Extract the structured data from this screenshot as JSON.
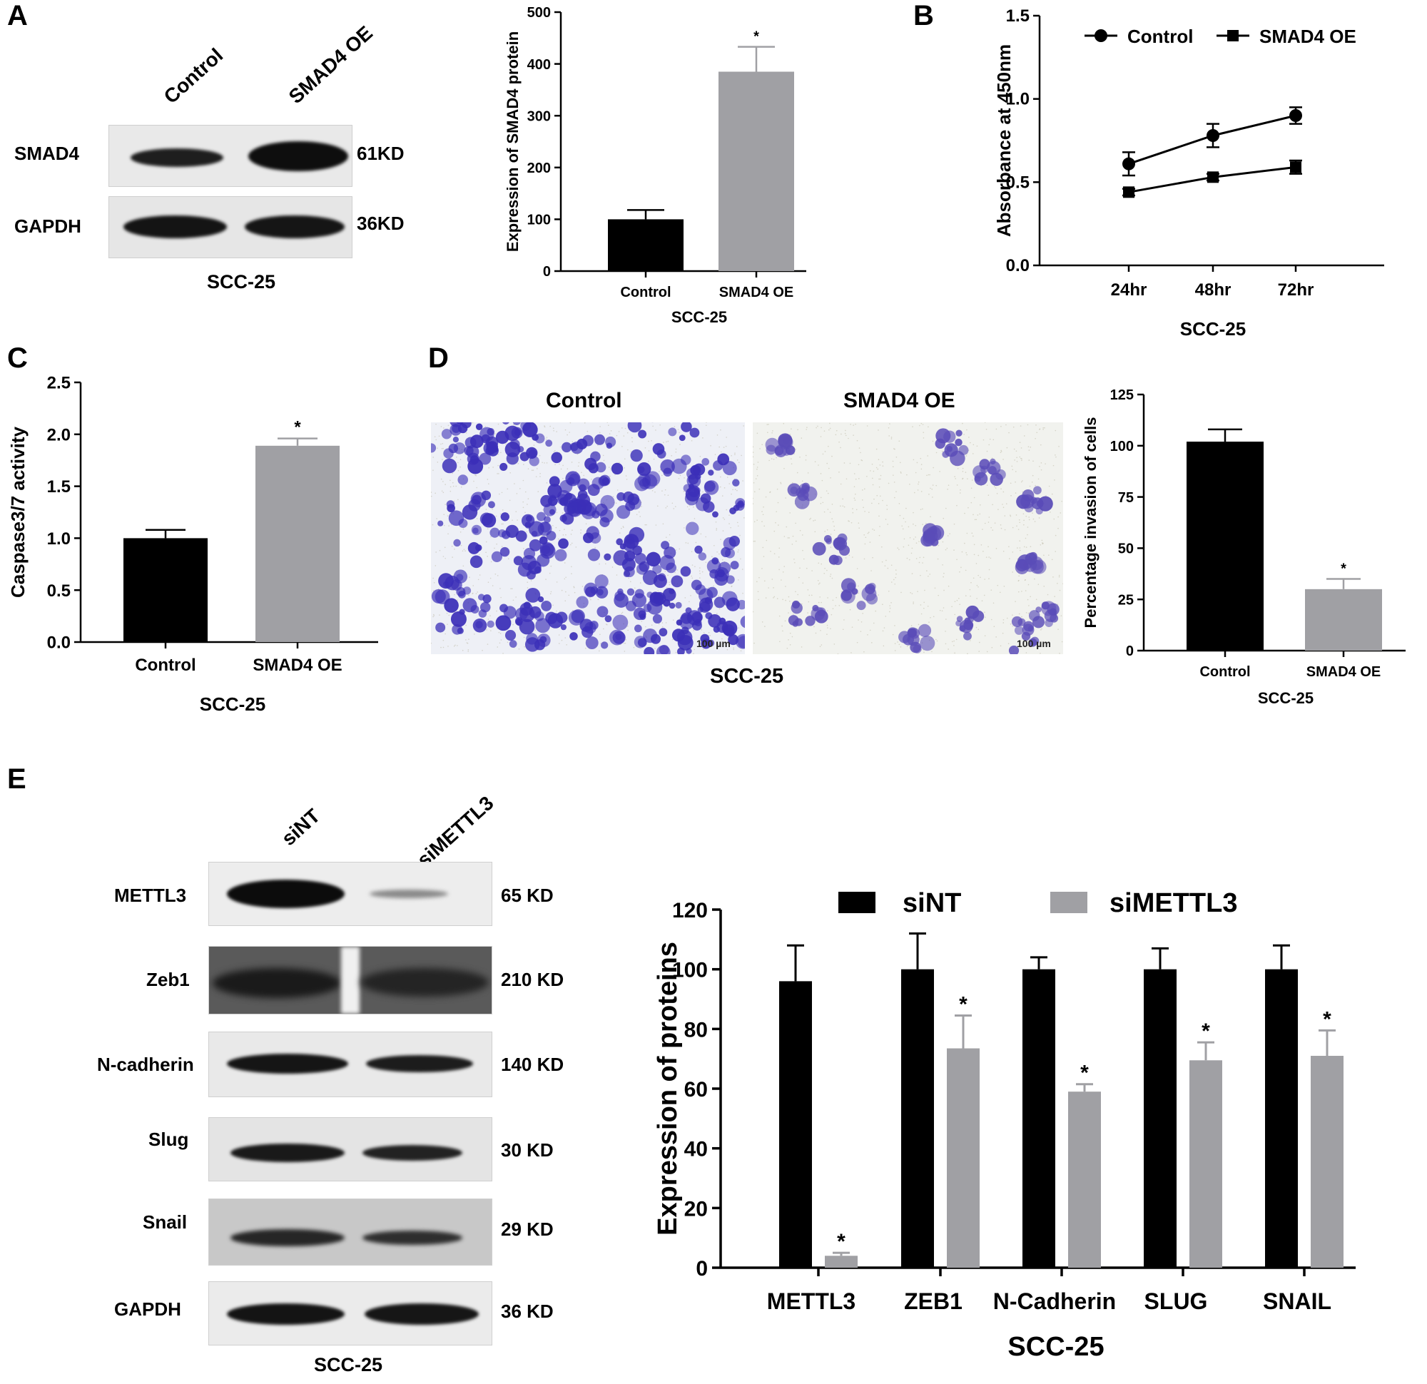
{
  "panels": {
    "A": {
      "letter": "A",
      "blot": {
        "lanes": [
          "Control",
          "SMAD4 OE"
        ],
        "rows": [
          {
            "protein": "SMAD4",
            "size": "61KD"
          },
          {
            "protein": "GAPDH",
            "size": "36KD"
          }
        ],
        "caption": "SCC-25"
      }
    },
    "B": {
      "letter": "B"
    },
    "C": {
      "letter": "C"
    },
    "D": {
      "letter": "D",
      "micrographs": [
        {
          "title": "Control",
          "scale": "100 µm"
        },
        {
          "title": "SMAD4 OE",
          "scale": "100 µm"
        }
      ],
      "caption": "SCC-25"
    },
    "E": {
      "letter": "E",
      "blot": {
        "lanes": [
          "siNT",
          "siMETTL3"
        ],
        "rows": [
          {
            "protein": "METTL3",
            "size": "65 KD"
          },
          {
            "protein": "Zeb1",
            "size": "210 KD"
          },
          {
            "protein": "N-cadherin",
            "size": "140 KD"
          },
          {
            "protein": "Slug",
            "size": "30 KD"
          },
          {
            "protein": "Snail",
            "size": "29 KD"
          },
          {
            "protein": "GAPDH",
            "size": "36 KD"
          }
        ],
        "caption": "SCC-25"
      }
    }
  },
  "colors": {
    "black_bar": "#000000",
    "gray_bar": "#a0a0a4",
    "stain": "#3b2fb8"
  },
  "chart_data": [
    {
      "id": "A-bar",
      "type": "bar",
      "categories": [
        "Control",
        "SMAD4 OE"
      ],
      "values": [
        100,
        385
      ],
      "errors": [
        18,
        48
      ],
      "significance": [
        "",
        "*"
      ],
      "ylabel": "Expression of SMAD4 protein",
      "xlabel": "SCC-25",
      "ylim": [
        0,
        500
      ],
      "yticks": [
        "0",
        "100",
        "200",
        "300",
        "400",
        "500"
      ]
    },
    {
      "id": "B-line",
      "type": "line",
      "x": [
        "24hr",
        "48hr",
        "72hr"
      ],
      "series": [
        {
          "name": "Control",
          "values": [
            0.61,
            0.78,
            0.9
          ],
          "errors": [
            0.07,
            0.07,
            0.05
          ],
          "marker": "circle"
        },
        {
          "name": "SMAD4 OE",
          "values": [
            0.44,
            0.53,
            0.59
          ],
          "errors": [
            0.02,
            0.02,
            0.04
          ],
          "marker": "square"
        }
      ],
      "ylabel": "Absorbance at 450nm",
      "xlabel": "SCC-25",
      "ylim": [
        0,
        1.5
      ],
      "yticks": [
        "0.0",
        "0.5",
        "1.0",
        "1.5"
      ],
      "legend": "top"
    },
    {
      "id": "C-bar",
      "type": "bar",
      "categories": [
        "Control",
        "SMAD4 OE"
      ],
      "values": [
        1.0,
        1.89
      ],
      "errors": [
        0.08,
        0.07
      ],
      "significance": [
        "",
        "*"
      ],
      "ylabel": "Caspase3/7 activity",
      "xlabel": "SCC-25",
      "ylim": [
        0,
        2.5
      ],
      "yticks": [
        "0.0",
        "0.5",
        "1.0",
        "1.5",
        "2.0",
        "2.5"
      ]
    },
    {
      "id": "D-bar",
      "type": "bar",
      "categories": [
        "Control",
        "SMAD4 OE"
      ],
      "values": [
        102,
        30
      ],
      "errors": [
        6,
        5
      ],
      "significance": [
        "",
        "*"
      ],
      "ylabel": "Percentage invasion of cells",
      "xlabel": "SCC-25",
      "ylim": [
        0,
        125
      ],
      "yticks": [
        "0",
        "25",
        "50",
        "75",
        "100",
        "125"
      ]
    },
    {
      "id": "E-bar",
      "type": "bar",
      "categories": [
        "METTL3",
        "ZEB1",
        "N-Cadherin",
        "SLUG",
        "SNAIL"
      ],
      "series": [
        {
          "name": "siNT",
          "values": [
            96,
            100,
            100,
            100,
            100
          ],
          "errors": [
            12,
            12,
            4,
            7,
            8
          ],
          "significance": [
            "",
            "",
            "",
            "",
            ""
          ]
        },
        {
          "name": "siMETTL3",
          "values": [
            4,
            73.5,
            59,
            69.5,
            71
          ],
          "errors": [
            1,
            11,
            2.5,
            6,
            8.5
          ],
          "significance": [
            "*",
            "*",
            "*",
            "*",
            "*"
          ]
        }
      ],
      "ylabel": "Expression of proteins",
      "xlabel": "SCC-25",
      "ylim": [
        0,
        120
      ],
      "yticks": [
        "0",
        "20",
        "40",
        "60",
        "80",
        "100",
        "120"
      ],
      "legend": "top"
    }
  ]
}
